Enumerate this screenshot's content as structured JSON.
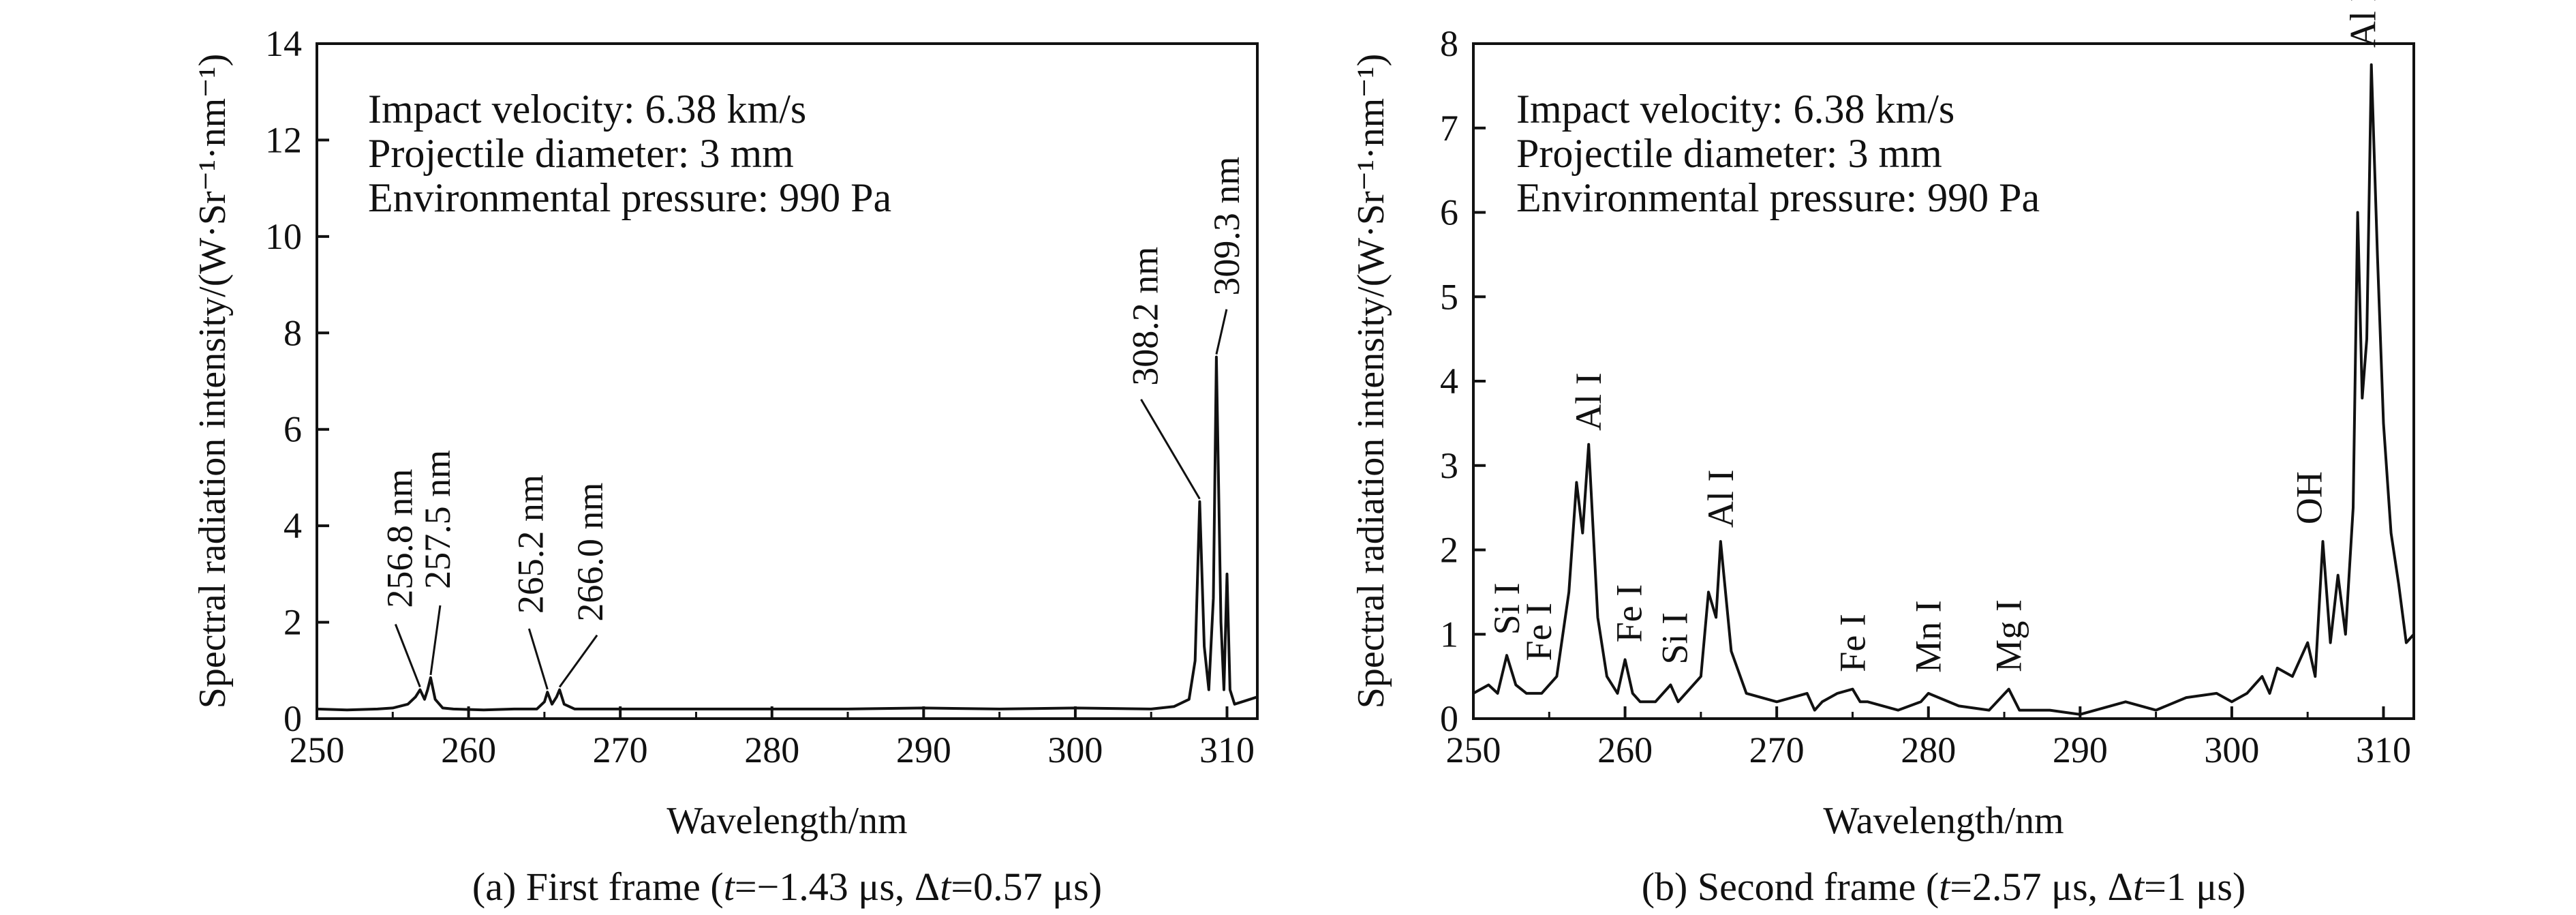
{
  "chart_data": [
    {
      "type": "line",
      "caption": "(a) First frame (t=−1.43 μs, Δt=0.57 μs)",
      "caption_parts": [
        "(a) First frame (",
        "t",
        "=−1.43 μs, Δ",
        "t",
        "=0.57 μs)"
      ],
      "xlabel": "Wavelength/nm",
      "ylabel": "Spectral radiation intensity/(W·Sr⁻¹·nm⁻¹)",
      "xlim": [
        250,
        312
      ],
      "ylim": [
        0,
        14
      ],
      "xticks": [
        250,
        260,
        270,
        280,
        290,
        300,
        310
      ],
      "yticks": [
        0,
        2,
        4,
        6,
        8,
        10,
        12,
        14
      ],
      "info_lines": [
        "Impact velocity: 6.38 km/s",
        "Projectile diameter: 3 mm",
        "Environmental pressure: 990 Pa"
      ],
      "series": [
        {
          "x": [
            250,
            252,
            254,
            255,
            256,
            256.5,
            256.8,
            257.1,
            257.3,
            257.5,
            257.8,
            258.3,
            259,
            261,
            263,
            264.5,
            265,
            265.2,
            265.5,
            265.8,
            266,
            266.3,
            267,
            270,
            275,
            280,
            285,
            290,
            295,
            300,
            305,
            306.5,
            307.5,
            307.9,
            308.2,
            308.5,
            308.8,
            309.1,
            309.3,
            309.6,
            309.8,
            310,
            310.2,
            310.5,
            311,
            312
          ],
          "y": [
            0.2,
            0.18,
            0.2,
            0.22,
            0.3,
            0.45,
            0.6,
            0.4,
            0.6,
            0.85,
            0.4,
            0.22,
            0.2,
            0.18,
            0.2,
            0.2,
            0.35,
            0.55,
            0.3,
            0.45,
            0.6,
            0.3,
            0.2,
            0.2,
            0.2,
            0.2,
            0.2,
            0.22,
            0.2,
            0.22,
            0.2,
            0.25,
            0.4,
            1.2,
            4.5,
            1.5,
            0.6,
            2.5,
            7.5,
            2.0,
            0.6,
            3.0,
            0.6,
            0.3,
            0.35,
            0.45
          ]
        }
      ],
      "annotations": [
        {
          "text": "256.8 nm",
          "x": 256.8,
          "y": 0.6
        },
        {
          "text": "257.5 nm",
          "x": 257.5,
          "y": 0.85
        },
        {
          "text": "265.2 nm",
          "x": 265.2,
          "y": 0.55
        },
        {
          "text": "266.0 nm",
          "x": 266.0,
          "y": 0.6
        },
        {
          "text": "308.2 nm",
          "x": 308.2,
          "y": 4.5
        },
        {
          "text": "309.3 nm",
          "x": 309.3,
          "y": 7.5
        }
      ]
    },
    {
      "type": "line",
      "caption": "(b) Second frame (t=2.57 μs, Δt=1 μs)",
      "caption_parts": [
        "(b) Second frame (",
        "t",
        "=2.57 μs, Δ",
        "t",
        "=1 μs)"
      ],
      "xlabel": "Wavelength/nm",
      "ylabel": "Spectral radiation intensity/(W·Sr⁻¹·nm⁻¹)",
      "xlim": [
        250,
        312
      ],
      "ylim": [
        0,
        8
      ],
      "xticks": [
        250,
        260,
        270,
        280,
        290,
        300,
        310
      ],
      "yticks": [
        0,
        1,
        2,
        3,
        4,
        5,
        6,
        7,
        8
      ],
      "info_lines": [
        "Impact velocity: 6.38 km/s",
        "Projectile diameter: 3 mm",
        "Environmental pressure: 990 Pa"
      ],
      "series": [
        {
          "x": [
            250,
            251,
            251.6,
            252.2,
            252.8,
            253.5,
            254.5,
            255.5,
            256.3,
            256.8,
            257.2,
            257.6,
            258.2,
            258.8,
            259.5,
            260,
            260.5,
            261,
            262,
            263,
            263.5,
            264,
            265,
            265.5,
            266,
            266.3,
            267,
            268,
            270,
            272,
            272.5,
            273,
            274,
            275,
            275.5,
            276,
            278,
            279.5,
            280,
            282,
            284,
            285.3,
            286,
            288,
            290,
            293,
            295,
            297,
            299,
            300,
            301,
            302,
            302.5,
            303,
            304,
            305,
            305.5,
            306,
            306.5,
            307,
            307.5,
            308,
            308.3,
            308.6,
            308.9,
            309.2,
            309.6,
            310,
            310.5,
            311,
            311.5,
            312
          ],
          "y": [
            0.3,
            0.4,
            0.3,
            0.75,
            0.4,
            0.3,
            0.3,
            0.5,
            1.5,
            2.8,
            2.2,
            3.25,
            1.2,
            0.5,
            0.3,
            0.7,
            0.3,
            0.2,
            0.2,
            0.4,
            0.2,
            0.3,
            0.5,
            1.5,
            1.2,
            2.1,
            0.8,
            0.3,
            0.2,
            0.3,
            0.1,
            0.2,
            0.3,
            0.35,
            0.2,
            0.2,
            0.1,
            0.2,
            0.3,
            0.15,
            0.1,
            0.35,
            0.1,
            0.1,
            0.05,
            0.2,
            0.1,
            0.25,
            0.3,
            0.2,
            0.3,
            0.5,
            0.3,
            0.6,
            0.5,
            0.9,
            0.5,
            2.1,
            0.9,
            1.7,
            1.0,
            2.5,
            6.0,
            3.8,
            4.5,
            7.75,
            5.5,
            3.5,
            2.2,
            1.6,
            0.9,
            1.0
          ]
        }
      ],
      "annotations": [
        {
          "text": "Si I",
          "x": 252.2,
          "y": 0.75
        },
        {
          "text": "Fe I",
          "x": 253.5,
          "y": 0.4
        },
        {
          "text": "Al I",
          "x": 257.6,
          "y": 3.25
        },
        {
          "text": "Fe I",
          "x": 260.0,
          "y": 0.7
        },
        {
          "text": "Si I",
          "x": 263.0,
          "y": 0.4
        },
        {
          "text": "Al I",
          "x": 266.3,
          "y": 2.1
        },
        {
          "text": "Fe I",
          "x": 275.0,
          "y": 0.35
        },
        {
          "text": "Mn I",
          "x": 280.0,
          "y": 0.3
        },
        {
          "text": "Mg I",
          "x": 285.3,
          "y": 0.35
        },
        {
          "text": "OH",
          "x": 306.0,
          "y": 2.1
        },
        {
          "text": "Al I",
          "x": 309.2,
          "y": 7.75
        }
      ]
    }
  ]
}
